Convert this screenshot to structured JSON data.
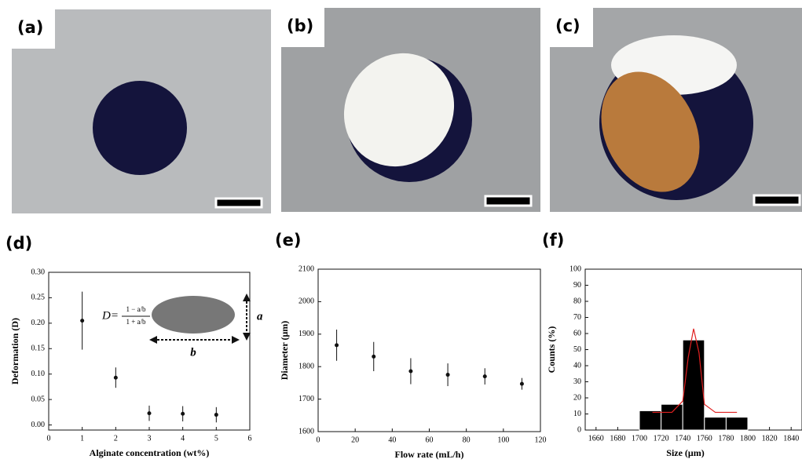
{
  "photos": [
    {
      "label": "(a)"
    },
    {
      "label": "(b)"
    },
    {
      "label": "(c)"
    }
  ],
  "chart_data": [
    {
      "type": "scatter",
      "label": "(d)",
      "x_label": "Alginate concentration (wt%)",
      "y_label": "Deformation (D)",
      "x": [
        1,
        2,
        3,
        4,
        5
      ],
      "values": [
        0.205,
        0.093,
        0.023,
        0.022,
        0.02
      ],
      "errors": [
        0.057,
        0.02,
        0.015,
        0.015,
        0.015
      ],
      "color": "#111111",
      "xlim": [
        0,
        6
      ],
      "xticks": [
        0,
        1,
        2,
        3,
        4,
        5,
        6
      ],
      "ylim": [
        -0.01,
        0.3
      ],
      "yticks": [
        {
          "value": 0,
          "label": "0.00"
        },
        {
          "value": 0.05,
          "label": "0.05"
        },
        {
          "value": 0.1,
          "label": "0.10"
        },
        {
          "value": 0.15,
          "label": "0.15"
        },
        {
          "value": 0.2,
          "label": "0.20"
        },
        {
          "value": 0.25,
          "label": "0.25"
        },
        {
          "value": 0.3,
          "label": "0.30"
        }
      ],
      "annotations": [
        "D=",
        "1 − a/b",
        "1 + a/b",
        "a",
        "b"
      ]
    },
    {
      "type": "scatter",
      "label": "(e)",
      "x_label": "Flow rate (mL/h)",
      "y_label": "Diameter (μm)",
      "x": [
        10,
        30,
        50,
        70,
        90,
        110
      ],
      "values": [
        1866,
        1831,
        1786,
        1775,
        1770,
        1747
      ],
      "errors": [
        48,
        45,
        40,
        35,
        25,
        18
      ],
      "color": "#111111",
      "xlim": [
        0,
        120
      ],
      "xticks": [
        0,
        20,
        40,
        60,
        80,
        100,
        120
      ],
      "ylim": [
        1600,
        2100
      ],
      "yticks": [
        1600,
        1700,
        1800,
        1900,
        2000,
        2100
      ]
    },
    {
      "type": "histogram",
      "label": "(f)",
      "x_label": "Size (μm)",
      "y_label": "Counts (%)",
      "bins": [
        1700,
        1720,
        1740,
        1760,
        1780,
        1800
      ],
      "values": [
        12,
        16,
        56,
        8,
        8
      ],
      "color": "#000000",
      "fit": {
        "color": "#e02020",
        "x": [
          1712,
          1730,
          1740,
          1745,
          1750,
          1755,
          1760,
          1770,
          1790
        ],
        "values": [
          11,
          11,
          18,
          45,
          63,
          48,
          16,
          11,
          11
        ]
      },
      "xlim": [
        1650,
        1850
      ],
      "xticks": [
        1660,
        1680,
        1700,
        1720,
        1740,
        1760,
        1780,
        1800,
        1820,
        1840
      ],
      "ylim": [
        0,
        100
      ],
      "yticks": [
        0,
        10,
        20,
        30,
        40,
        50,
        60,
        70,
        80,
        90,
        100
      ]
    }
  ]
}
